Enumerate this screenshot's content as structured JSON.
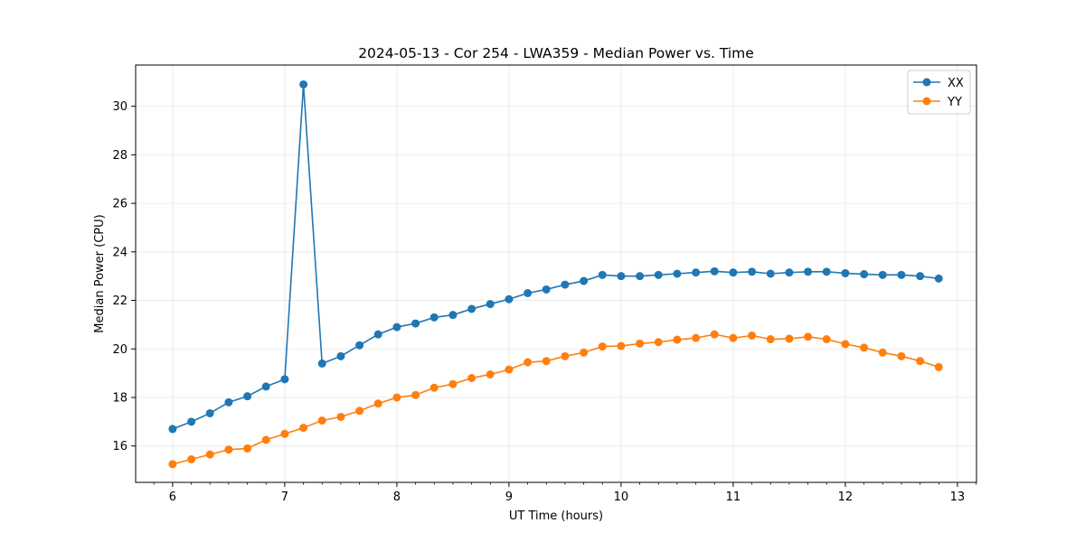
{
  "chart_data": {
    "type": "line",
    "title": "2024-05-13 - Cor 254 - LWA359 - Median Power vs. Time",
    "xlabel": "UT Time (hours)",
    "ylabel": "Median Power (CPU)",
    "xlim": [
      5.67,
      13.17
    ],
    "ylim": [
      14.5,
      31.7
    ],
    "xticks": [
      6,
      7,
      8,
      9,
      10,
      11,
      12,
      13
    ],
    "yticks": [
      16,
      18,
      20,
      22,
      24,
      26,
      28,
      30
    ],
    "grid": true,
    "legend_position": "top-right",
    "x": [
      6.0,
      6.167,
      6.333,
      6.5,
      6.667,
      6.833,
      7.0,
      7.167,
      7.333,
      7.5,
      7.667,
      7.833,
      8.0,
      8.167,
      8.333,
      8.5,
      8.667,
      8.833,
      9.0,
      9.167,
      9.333,
      9.5,
      9.667,
      9.833,
      10.0,
      10.167,
      10.333,
      10.5,
      10.667,
      10.833,
      11.0,
      11.167,
      11.333,
      11.5,
      11.667,
      11.833,
      12.0,
      12.167,
      12.333,
      12.5,
      12.667,
      12.833
    ],
    "series": [
      {
        "name": "XX",
        "color": "#1f77b4",
        "values": [
          16.7,
          17.0,
          17.35,
          17.8,
          18.05,
          18.45,
          18.75,
          30.9,
          19.4,
          19.7,
          20.15,
          20.6,
          20.9,
          21.05,
          21.3,
          21.4,
          21.65,
          21.85,
          22.05,
          22.3,
          22.45,
          22.65,
          22.8,
          23.05,
          23.0,
          23.0,
          23.05,
          23.1,
          23.15,
          23.2,
          23.15,
          23.18,
          23.1,
          23.15,
          23.18,
          23.18,
          23.12,
          23.08,
          23.05,
          23.05,
          23.0,
          22.9
        ]
      },
      {
        "name": "YY",
        "color": "#ff7f0e",
        "values": [
          15.25,
          15.45,
          15.65,
          15.85,
          15.9,
          16.25,
          16.5,
          16.75,
          17.05,
          17.2,
          17.45,
          17.75,
          18.0,
          18.1,
          18.4,
          18.55,
          18.8,
          18.95,
          19.15,
          19.45,
          19.5,
          19.7,
          19.85,
          20.1,
          20.12,
          20.22,
          20.28,
          20.38,
          20.45,
          20.6,
          20.45,
          20.55,
          20.4,
          20.42,
          20.5,
          20.4,
          20.2,
          20.05,
          19.85,
          19.7,
          19.5,
          19.25
        ]
      }
    ]
  }
}
